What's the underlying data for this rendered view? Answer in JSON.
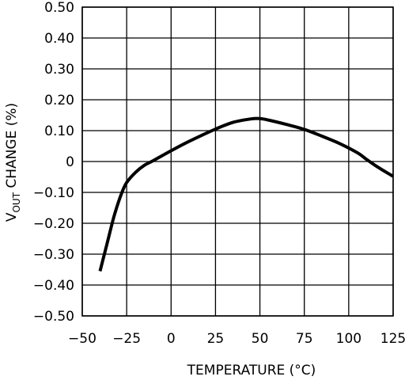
{
  "chart_data": {
    "type": "line",
    "xlabel": "TEMPERATURE (°C)",
    "ylabel": {
      "main": "V",
      "subscript": "OUT",
      "rest": " CHANGE (%)"
    },
    "xlim": [
      -50,
      125
    ],
    "ylim": [
      -0.5,
      0.5
    ],
    "x_ticks": [
      -50,
      -25,
      0,
      25,
      50,
      75,
      100,
      125
    ],
    "x_tick_labels": [
      "−50",
      "−25",
      "0",
      "25",
      "50",
      "75",
      "100",
      "125"
    ],
    "y_ticks": [
      0.5,
      0.4,
      0.3,
      0.2,
      0.1,
      0,
      -0.1,
      -0.2,
      -0.3,
      -0.4,
      -0.5
    ],
    "y_tick_labels": [
      "0.50",
      "0.40",
      "0.30",
      "0.20",
      "0.10",
      "0",
      "−0.10",
      "−0.20",
      "−0.30",
      "−0.40",
      "−0.50"
    ],
    "grid": true,
    "series": [
      {
        "color": "#000000",
        "x": [
          -40,
          -36,
          -32,
          -28,
          -25,
          -20,
          -15,
          -10,
          0,
          10,
          25,
          35,
          45,
          50,
          55,
          65,
          75,
          85,
          95,
          105,
          110,
          115,
          120,
          125
        ],
        "y": [
          -0.355,
          -0.265,
          -0.175,
          -0.105,
          -0.068,
          -0.035,
          -0.012,
          0.003,
          0.035,
          0.065,
          0.105,
          0.127,
          0.138,
          0.139,
          0.134,
          0.12,
          0.104,
          0.082,
          0.058,
          0.028,
          0.007,
          -0.013,
          -0.031,
          -0.048
        ]
      }
    ]
  }
}
